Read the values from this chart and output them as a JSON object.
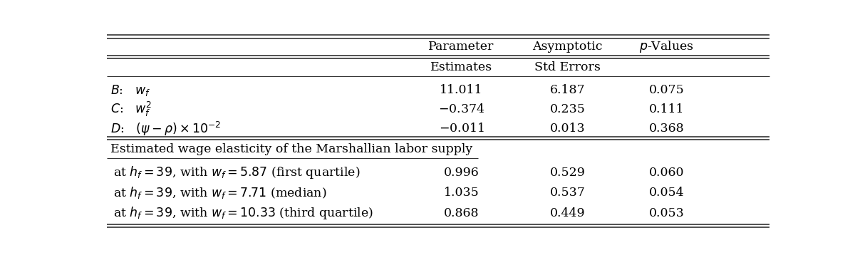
{
  "col_headers_row1": [
    "",
    "Parameter",
    "Asymptotic",
    "p-Values"
  ],
  "col_headers_row2": [
    "",
    "Estimates",
    "Std Errors",
    ""
  ],
  "param_rows": [
    {
      "label_text": "$B$:   $w_f$",
      "param_est": "11.011",
      "std_err": "6.187",
      "p_val": "0.075"
    },
    {
      "label_text": "$C$:   $w_f^2$",
      "param_est": "$-$0.374",
      "std_err": "0.235",
      "p_val": "0.111"
    },
    {
      "label_text": "$D$:   $(\\psi - \\rho) \\times 10^{-2}$",
      "param_est": "$-$0.011",
      "std_err": "0.013",
      "p_val": "0.368"
    }
  ],
  "section_header": "Estimated wage elasticity of the Marshallian labor supply",
  "elasticity_rows": [
    {
      "label_text": "at $h_f = 39$, with $w_f = 5.87$ (first quartile)",
      "param_est": "0.996",
      "std_err": "0.529",
      "p_val": "0.060"
    },
    {
      "label_text": "at $h_f = 39$, with $w_f = 7.71$ (median)",
      "param_est": "1.035",
      "std_err": "0.537",
      "p_val": "0.054"
    },
    {
      "label_text": "at $h_f = 39$, with $w_f = 10.33$ (third quartile)",
      "param_est": "0.868",
      "std_err": "0.449",
      "p_val": "0.053"
    }
  ],
  "background_color": "#ffffff",
  "text_color": "#000000",
  "font_size": 12.5
}
